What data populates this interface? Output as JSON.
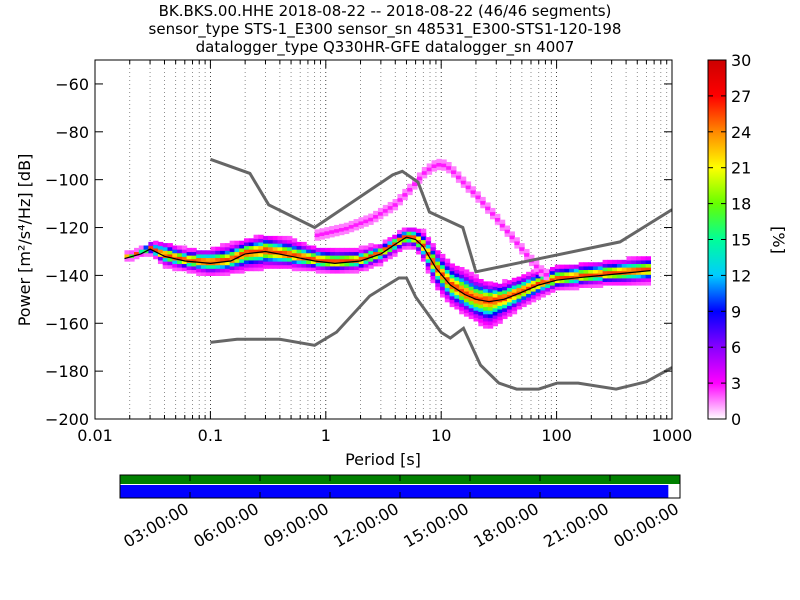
{
  "title": {
    "line1": "BK.BKS.00.HHE   2018-08-22 -- 2018-08-22  (46/46 segments)",
    "line2": "sensor_type STS-1_E300 sensor_sn 48531_E300-STS1-120-198",
    "line3": "datalogger_type Q330HR-GFE datalogger_sn 4007"
  },
  "chart_data": [
    {
      "type": "heatmap",
      "subtype": "probabilistic-power-spectral-density",
      "xlabel": "Period [s]",
      "ylabel": "Power [m²/s⁴/Hz] [dB]",
      "xscale": "log",
      "xlim": [
        0.01,
        1000
      ],
      "ylim": [
        -200,
        -50
      ],
      "x_ticks": [
        0.01,
        0.1,
        1,
        10,
        100,
        1000
      ],
      "x_tick_labels": [
        "0.01",
        "0.1",
        "1",
        "10",
        "100",
        "1000"
      ],
      "y_ticks": [
        -200,
        -180,
        -160,
        -140,
        -120,
        -100,
        -80,
        -60
      ],
      "y_tick_labels": [
        "−200",
        "−180",
        "−160",
        "−140",
        "−120",
        "−100",
        "−80",
        "−60"
      ],
      "grid": "dotted vertical at log decades",
      "colorbar": {
        "label": "[%]",
        "min": 0,
        "max": 30,
        "ticks": [
          0,
          3,
          6,
          9,
          12,
          15,
          18,
          21,
          24,
          27,
          30
        ],
        "tick_labels": [
          "0",
          "3",
          "6",
          "9",
          "12",
          "15",
          "18",
          "21",
          "24",
          "27",
          "30"
        ],
        "colors": [
          "#ffffff",
          "#ff00ff",
          "#8800ff",
          "#0000ff",
          "#00ccff",
          "#00ff99",
          "#66ff00",
          "#ffff00",
          "#ff8800",
          "#ff0000",
          "#cc0000"
        ]
      },
      "nhnm": {
        "name": "New High Noise Model",
        "color": "#666666",
        "x": [
          0.1,
          0.22,
          0.32,
          0.8,
          3.8,
          4.6,
          6.3,
          7.9,
          15.4,
          20,
          354,
          1000
        ],
        "y": [
          -91.5,
          -97.4,
          -110.5,
          -120,
          -98,
          -96.5,
          -101,
          -113.5,
          -120,
          -138.5,
          -126,
          -112.5
        ]
      },
      "nlnm": {
        "name": "New Low Noise Model",
        "color": "#666666",
        "x": [
          0.1,
          0.17,
          0.4,
          0.8,
          1.24,
          2.4,
          4.3,
          5,
          6,
          10,
          12,
          15.6,
          21.9,
          31.6,
          45,
          70,
          101,
          154,
          328,
          600,
          1000
        ],
        "y": [
          -168,
          -166.7,
          -166.7,
          -169.2,
          -163.7,
          -148.6,
          -141.1,
          -141.1,
          -149,
          -163.8,
          -166.2,
          -162.1,
          -177.5,
          -185,
          -187.5,
          -187.5,
          -185,
          -185,
          -187.5,
          -184.4,
          -178.5
        ]
      },
      "mode": {
        "name": "mode",
        "color": "#000000",
        "x": [
          0.018,
          0.025,
          0.03,
          0.04,
          0.06,
          0.1,
          0.15,
          0.2,
          0.3,
          0.5,
          0.8,
          1.2,
          2,
          3,
          4,
          5,
          6,
          7,
          9,
          12,
          16,
          20,
          26,
          35,
          50,
          70,
          100,
          150,
          250,
          400,
          650
        ],
        "y": [
          -133,
          -131,
          -129,
          -132,
          -134,
          -135,
          -134,
          -131,
          -130,
          -132,
          -134,
          -135,
          -134,
          -131,
          -127,
          -124,
          -125,
          -128,
          -137,
          -144,
          -148,
          -150,
          -151,
          -150,
          -147,
          -144,
          -142,
          -141,
          -140,
          -139,
          -138
        ]
      },
      "spread": {
        "x": [
          0.018,
          0.025,
          0.03,
          0.04,
          0.06,
          0.1,
          0.15,
          0.2,
          0.3,
          0.5,
          0.8,
          1.2,
          2,
          3,
          4,
          5,
          6,
          7,
          9,
          12,
          16,
          20,
          26,
          35,
          50,
          70,
          100,
          150,
          250,
          400,
          650
        ],
        "upper": [
          -132,
          -130,
          -127,
          -127,
          -130,
          -130,
          -128,
          -126,
          -124,
          -126,
          -129,
          -130,
          -130,
          -128,
          -124,
          -121,
          -121,
          -123,
          -130,
          -136,
          -139,
          -142,
          -144,
          -144,
          -141,
          -139,
          -137,
          -136,
          -135,
          -134,
          -133
        ],
        "lower": [
          -134,
          -132,
          -131,
          -136,
          -138,
          -140,
          -139,
          -138,
          -137,
          -137,
          -138,
          -139,
          -138,
          -135,
          -131,
          -128,
          -129,
          -134,
          -145,
          -152,
          -156,
          -159,
          -162,
          -158,
          -153,
          -149,
          -146,
          -145,
          -144,
          -144,
          -143
        ]
      },
      "outlier_path": {
        "x": [
          0.8,
          1.5,
          2.5,
          4,
          5.5,
          7,
          8.5,
          10,
          12,
          15,
          20,
          28,
          40,
          55,
          70,
          85
        ],
        "y": [
          -124,
          -121,
          -117,
          -111,
          -104,
          -98,
          -95,
          -94,
          -96,
          -101,
          -107,
          -115,
          -124,
          -132,
          -138,
          -141
        ]
      }
    },
    {
      "type": "timeline",
      "subtype": "data-coverage",
      "x_tick_labels": [
        "03:00:00",
        "06:00:00",
        "09:00:00",
        "12:00:00",
        "15:00:00",
        "18:00:00",
        "21:00:00",
        "00:00:00"
      ],
      "span_hours": [
        0,
        24
      ],
      "bars": [
        {
          "name": "segments",
          "color": "#008000",
          "start_hour": 0,
          "end_hour": 24
        },
        {
          "name": "psd-coverage",
          "color": "#0000ff",
          "start_hour": 0,
          "end_hour": 23.5
        }
      ]
    }
  ]
}
